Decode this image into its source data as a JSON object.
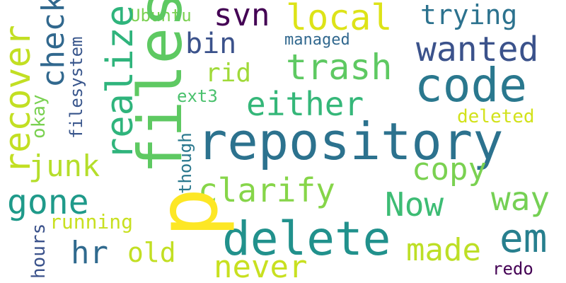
{
  "words": [
    {
      "id": "repository",
      "text": "repository",
      "color": "#2c728e"
    },
    {
      "id": "p",
      "text": "p",
      "color": "#fde725"
    },
    {
      "id": "delete",
      "text": "delete",
      "color": "#21918c"
    },
    {
      "id": "files",
      "text": "files",
      "color": "#5ec962"
    },
    {
      "id": "code",
      "text": "code",
      "color": "#2a788e"
    },
    {
      "id": "svn",
      "text": "svn",
      "color": "#440154"
    },
    {
      "id": "local",
      "text": "local",
      "color": "#dde318"
    },
    {
      "id": "wanted",
      "text": "wanted",
      "color": "#3b528b"
    },
    {
      "id": "trying",
      "text": "trying",
      "color": "#2c728e"
    },
    {
      "id": "realize",
      "text": "realize",
      "color": "#2fb47c"
    },
    {
      "id": "recover",
      "text": "recover",
      "color": "#c2df23"
    },
    {
      "id": "bin",
      "text": "bin",
      "color": "#31688e"
    },
    {
      "id": "check",
      "text": "check",
      "color": "#3b528b"
    },
    {
      "id": "trash",
      "text": "trash",
      "color": "#5ec962"
    },
    {
      "id": "rid",
      "text": "rid",
      "color": "#a0da39"
    },
    {
      "id": "either",
      "text": "either",
      "color": "#35b779"
    },
    {
      "id": "copy",
      "text": "copy",
      "color": "#7ad151"
    },
    {
      "id": "clarify",
      "text": "clarify",
      "color": "#86d549"
    },
    {
      "id": "gone",
      "text": "gone",
      "color": "#1f9a8a"
    },
    {
      "id": "junk",
      "text": "junk",
      "color": "#b5de2b"
    },
    {
      "id": "Now",
      "text": "Now",
      "color": "#3dbc74"
    },
    {
      "id": "way",
      "text": "way",
      "color": "#75d054"
    },
    {
      "id": "em",
      "text": "em",
      "color": "#277f8e"
    },
    {
      "id": "made",
      "text": "made",
      "color": "#bddf26"
    },
    {
      "id": "never",
      "text": "never",
      "color": "#c8e020"
    },
    {
      "id": "hr",
      "text": "hr",
      "color": "#306a8e"
    },
    {
      "id": "old",
      "text": "old",
      "color": "#c2df23"
    },
    {
      "id": "running",
      "text": "running",
      "color": "#c8e020"
    },
    {
      "id": "hours",
      "text": "hours",
      "color": "#3b528b"
    },
    {
      "id": "redo",
      "text": "redo",
      "color": "#440154"
    },
    {
      "id": "Ubuntu",
      "text": "Ubuntu",
      "color": "#7ad151"
    },
    {
      "id": "managed",
      "text": "managed",
      "color": "#31688e"
    },
    {
      "id": "ext3",
      "text": "ext3",
      "color": "#4ac16d"
    },
    {
      "id": "deleted",
      "text": "deleted",
      "color": "#d2e21b"
    },
    {
      "id": "filesystem",
      "text": "filesystem",
      "color": "#39568c"
    },
    {
      "id": "okay",
      "text": "okay",
      "color": "#7ad151"
    },
    {
      "id": "though",
      "text": "though",
      "color": "#2a788e"
    }
  ]
}
